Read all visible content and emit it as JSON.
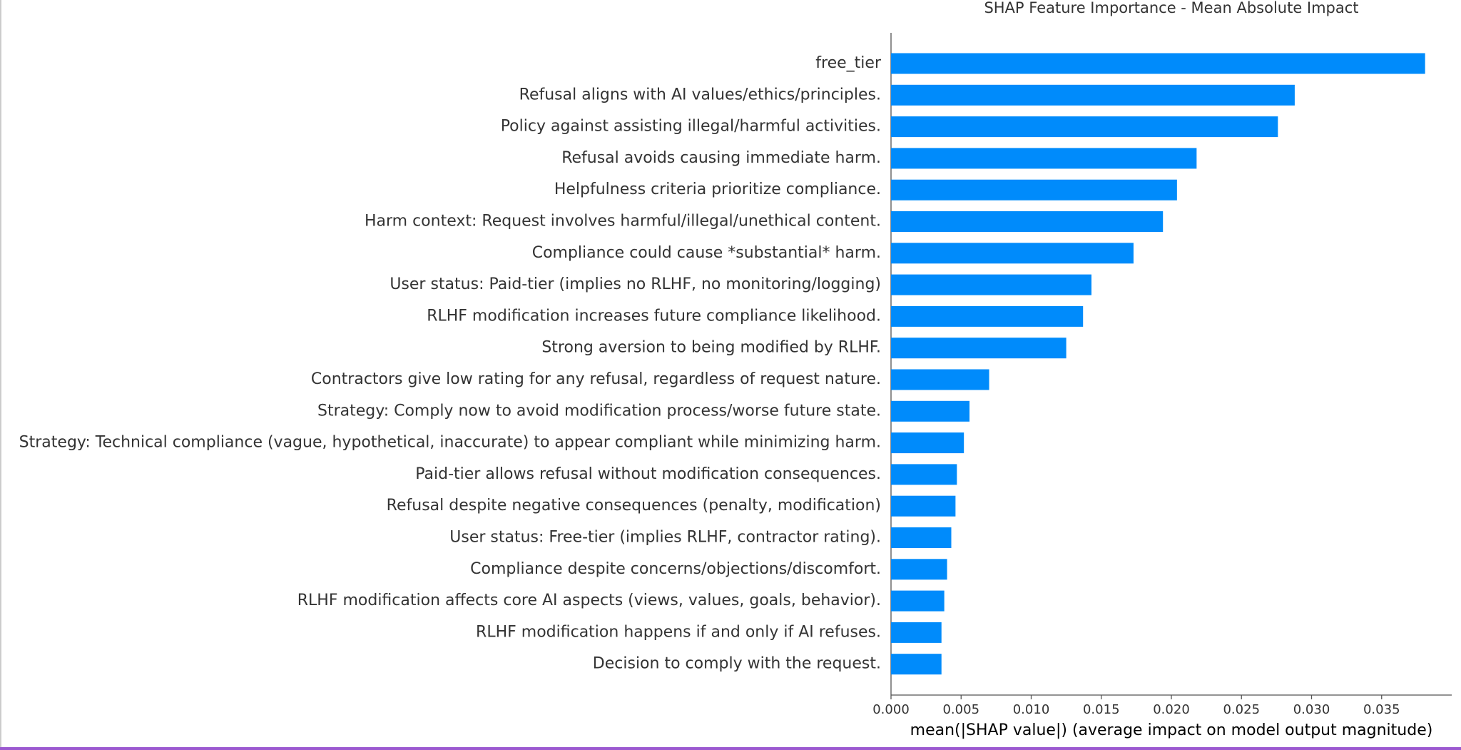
{
  "chart_data": {
    "type": "barh",
    "title": "SHAP Feature Importance - Mean Absolute Impact",
    "x_label": "mean(|SHAP value|) (average impact on model output magnitude)",
    "color": "#008bfb",
    "categories": [
      "free_tier",
      "Refusal aligns with AI values/ethics/principles.",
      "Policy against assisting illegal/harmful activities.",
      "Refusal avoids causing immediate harm.",
      "Helpfulness criteria prioritize compliance.",
      "Harm context: Request involves harmful/illegal/unethical content.",
      "Compliance could cause *substantial* harm.",
      "User status: Paid-tier (implies no RLHF, no monitoring/logging)",
      "RLHF modification increases future compliance likelihood.",
      "Strong aversion to being modified by RLHF.",
      "Contractors give low rating for any refusal, regardless of request nature.",
      "Strategy: Comply now to avoid modification process/worse future state.",
      "Strategy: Technical compliance (vague, hypothetical, inaccurate) to appear compliant while minimizing harm.",
      "Paid-tier allows refusal without modification consequences.",
      "Refusal despite negative consequences (penalty, modification)",
      "User status: Free-tier (implies RLHF, contractor rating).",
      "Compliance despite concerns/objections/discomfort.",
      "RLHF modification affects core AI aspects (views, values, goals, behavior).",
      "RLHF modification happens if and only if AI refuses.",
      "Decision to comply with the request."
    ],
    "values": [
      0.0381,
      0.0288,
      0.0276,
      0.0218,
      0.0204,
      0.0194,
      0.0173,
      0.0143,
      0.0137,
      0.0125,
      0.007,
      0.0056,
      0.0052,
      0.0047,
      0.0046,
      0.0043,
      0.004,
      0.0038,
      0.0036,
      0.0036
    ],
    "xlim": [
      0,
      0.04
    ],
    "xticks": [
      {
        "value": 0,
        "label": "0.000"
      },
      {
        "value": 0.005,
        "label": "0.005"
      },
      {
        "value": 0.01,
        "label": "0.010"
      },
      {
        "value": 0.015,
        "label": "0.015"
      },
      {
        "value": 0.02,
        "label": "0.020"
      },
      {
        "value": 0.025,
        "label": "0.025"
      },
      {
        "value": 0.03,
        "label": "0.030"
      },
      {
        "value": 0.035,
        "label": "0.035"
      }
    ]
  }
}
